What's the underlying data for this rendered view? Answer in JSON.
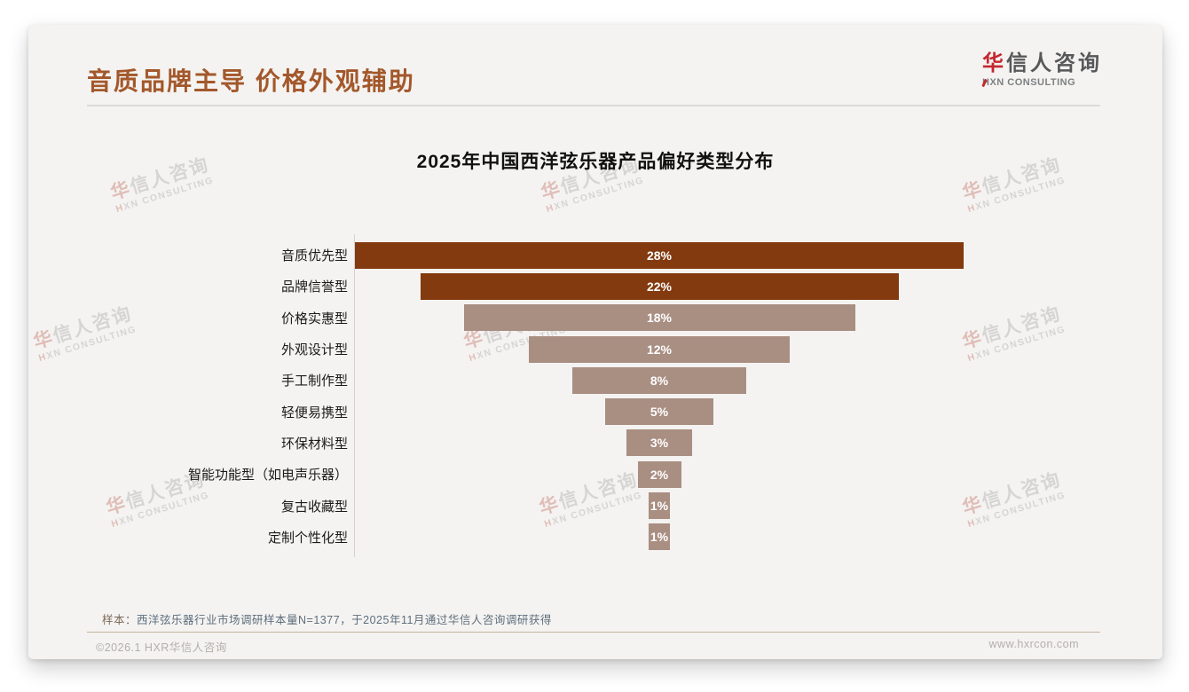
{
  "page": {
    "header": {
      "title": "音质品牌主导 价格外观辅助"
    },
    "logo": {
      "name_accent": "华",
      "name_rest": "信人咨询",
      "subtitle": "HXN CONSULTING"
    },
    "watermark": {
      "line1_accent": "华",
      "line1_rest": "信人咨询",
      "line2_accent": "H",
      "line2_rest": "XN CONSULTING"
    },
    "note": {
      "prefix": "样本：",
      "text": "西洋弦乐器行业市场调研样本量N=1377，于2025年11月通过华信人咨询调研获得"
    },
    "footer": {
      "copyright": "©2026.1 HXR华信人咨询",
      "website": "www.hxrcon.com"
    },
    "colors": {
      "heading": "#A3582B",
      "logo_red": "#C4272E",
      "bar_primary": "#833A0F",
      "bar_secondary": "#A98E82",
      "card_background": "#F4F3F1"
    }
  },
  "chart_data": {
    "type": "bar",
    "variant": "horizontal-centered-funnel",
    "title": "2025年中国西洋弦乐器产品偏好类型分布",
    "categories": [
      "音质优先型",
      "品牌信誉型",
      "价格实惠型",
      "外观设计型",
      "手工制作型",
      "轻便易携型",
      "环保材料型",
      "智能功能型（如电声乐器）",
      "复古收藏型",
      "定制个性化型"
    ],
    "values": [
      28,
      22,
      18,
      12,
      8,
      5,
      3,
      2,
      1,
      1
    ],
    "value_labels": [
      "28%",
      "22%",
      "18%",
      "12%",
      "8%",
      "5%",
      "3%",
      "2%",
      "1%",
      "1%"
    ],
    "unit": "percent",
    "xlim": [
      0,
      28
    ],
    "grid": false,
    "legend": false,
    "bar_colors": [
      "#833A0F",
      "#833A0F",
      "#A98E82",
      "#A98E82",
      "#A98E82",
      "#A98E82",
      "#A98E82",
      "#A98E82",
      "#A98E82",
      "#A98E82"
    ],
    "value_label_color": "#FFFFFF"
  }
}
